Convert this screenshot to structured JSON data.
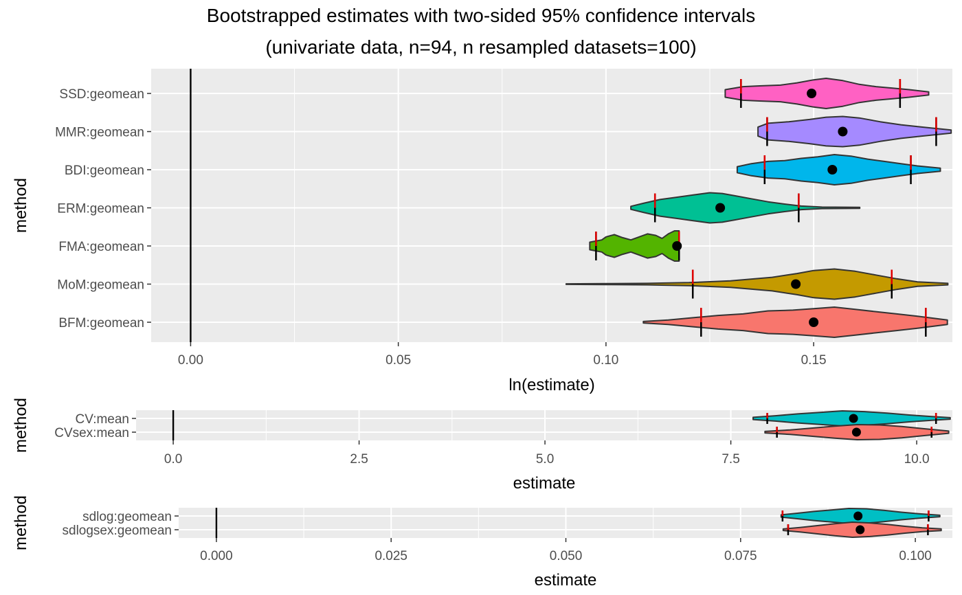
{
  "chart_data": {
    "type": "violin",
    "title": "Bootstrapped estimates with two-sided 95% confidence intervals",
    "subtitle": "(univariate data, n=94, n resampled datasets=100)",
    "panels": [
      {
        "xlabel": "ln(estimate)",
        "ylabel": "method",
        "xlim": [
          -0.0095,
          0.1834
        ],
        "xticks": [
          0.0,
          0.05,
          0.1,
          0.15
        ],
        "xtick_labels": [
          "0.00",
          "0.05",
          "0.10",
          "0.15"
        ],
        "minor_gridlines": [
          0.025,
          0.075,
          0.125,
          0.175
        ],
        "reference_line": 0,
        "grid": true,
        "categories": [
          "SSD:geomean",
          "MMR:geomean",
          "BDI:geomean",
          "ERM:geomean",
          "FMA:geomean",
          "MoM:geomean",
          "BFM:geomean"
        ],
        "series": [
          {
            "name": "SSD:geomean",
            "color": "#FF61C3",
            "point": 0.1495,
            "ci": [
              0.1325,
              0.1708
            ],
            "range": [
              0.1287,
              0.1777
            ],
            "profile": [
              [
                0.1287,
                0.25
              ],
              [
                0.133,
                0.45
              ],
              [
                0.137,
                0.5
              ],
              [
                0.142,
                0.55
              ],
              [
                0.146,
                0.7
              ],
              [
                0.15,
                0.9
              ],
              [
                0.153,
                1.0
              ],
              [
                0.157,
                0.85
              ],
              [
                0.161,
                0.6
              ],
              [
                0.165,
                0.45
              ],
              [
                0.169,
                0.35
              ],
              [
                0.173,
                0.25
              ],
              [
                0.1777,
                0.1
              ]
            ]
          },
          {
            "name": "MMR:geomean",
            "color": "#A58AFF",
            "point": 0.157,
            "ci": [
              0.1388,
              0.1795
            ],
            "range": [
              0.1366,
              0.1831
            ],
            "profile": [
              [
                0.1366,
                0.3
              ],
              [
                0.139,
                0.55
              ],
              [
                0.144,
                0.65
              ],
              [
                0.149,
                0.8
              ],
              [
                0.153,
                0.95
              ],
              [
                0.157,
                1.0
              ],
              [
                0.161,
                0.9
              ],
              [
                0.166,
                0.65
              ],
              [
                0.171,
                0.45
              ],
              [
                0.176,
                0.3
              ],
              [
                0.1831,
                0.1
              ]
            ]
          },
          {
            "name": "BDI:geomean",
            "color": "#00B6EB",
            "point": 0.1545,
            "ci": [
              0.1382,
              0.1734
            ],
            "range": [
              0.1316,
              0.1805
            ],
            "profile": [
              [
                0.1316,
                0.2
              ],
              [
                0.135,
                0.4
              ],
              [
                0.139,
                0.55
              ],
              [
                0.143,
                0.6
              ],
              [
                0.147,
                0.75
              ],
              [
                0.151,
                0.85
              ],
              [
                0.155,
                1.0
              ],
              [
                0.159,
                0.9
              ],
              [
                0.163,
                0.7
              ],
              [
                0.167,
                0.55
              ],
              [
                0.171,
                0.4
              ],
              [
                0.175,
                0.25
              ],
              [
                0.1805,
                0.1
              ]
            ]
          },
          {
            "name": "ERM:geomean",
            "color": "#00C094",
            "point": 0.1275,
            "ci": [
              0.1118,
              0.1464
            ],
            "range": [
              0.106,
              0.1611
            ],
            "profile": [
              [
                0.106,
                0.1
              ],
              [
                0.109,
                0.3
              ],
              [
                0.113,
                0.55
              ],
              [
                0.117,
                0.7
              ],
              [
                0.121,
                0.85
              ],
              [
                0.125,
                1.0
              ],
              [
                0.128,
                0.95
              ],
              [
                0.131,
                0.8
              ],
              [
                0.135,
                0.6
              ],
              [
                0.139,
                0.4
              ],
              [
                0.143,
                0.25
              ],
              [
                0.147,
                0.12
              ],
              [
                0.152,
                0.05
              ],
              [
                0.1611,
                0.03
              ]
            ]
          },
          {
            "name": "FMA:geomean",
            "color": "#53B400",
            "point": 0.1171,
            "ci": [
              0.0976,
              0.1176
            ],
            "range": [
              0.0961,
              0.1176
            ],
            "profile": [
              [
                0.0961,
                0.25
              ],
              [
                0.099,
                0.4
              ],
              [
                0.1,
                0.6
              ],
              [
                0.102,
                0.75
              ],
              [
                0.104,
                0.55
              ],
              [
                0.106,
                0.4
              ],
              [
                0.108,
                0.6
              ],
              [
                0.11,
                0.8
              ],
              [
                0.112,
                0.7
              ],
              [
                0.1135,
                0.5
              ],
              [
                0.115,
                0.8
              ],
              [
                0.1165,
                1.0
              ],
              [
                0.1176,
                1.0
              ]
            ]
          },
          {
            "name": "MoM:geomean",
            "color": "#C49A00",
            "point": 0.1457,
            "ci": [
              0.1209,
              0.1688
            ],
            "range": [
              0.0904,
              0.1823
            ],
            "profile": [
              [
                0.0904,
                0.02
              ],
              [
                0.1,
                0.03
              ],
              [
                0.11,
                0.05
              ],
              [
                0.12,
                0.1
              ],
              [
                0.13,
                0.22
              ],
              [
                0.14,
                0.45
              ],
              [
                0.146,
                0.7
              ],
              [
                0.15,
                0.9
              ],
              [
                0.155,
                1.0
              ],
              [
                0.16,
                0.85
              ],
              [
                0.165,
                0.6
              ],
              [
                0.17,
                0.35
              ],
              [
                0.175,
                0.15
              ],
              [
                0.1823,
                0.05
              ]
            ]
          },
          {
            "name": "BFM:geomean",
            "color": "#F8766D",
            "point": 0.15,
            "ci": [
              0.1229,
              0.177
            ],
            "range": [
              0.109,
              0.1822
            ],
            "profile": [
              [
                0.109,
                0.05
              ],
              [
                0.115,
                0.15
              ],
              [
                0.121,
                0.3
              ],
              [
                0.127,
                0.45
              ],
              [
                0.133,
                0.55
              ],
              [
                0.139,
                0.75
              ],
              [
                0.145,
                0.8
              ],
              [
                0.15,
                0.9
              ],
              [
                0.155,
                1.0
              ],
              [
                0.16,
                0.85
              ],
              [
                0.165,
                0.7
              ],
              [
                0.17,
                0.55
              ],
              [
                0.175,
                0.4
              ],
              [
                0.1822,
                0.15
              ]
            ]
          }
        ]
      },
      {
        "xlabel": "estimate",
        "ylabel": "method",
        "xlim": [
          -0.5,
          10.48
        ],
        "xticks": [
          0.0,
          2.5,
          5.0,
          7.5,
          10.0
        ],
        "xtick_labels": [
          "0.0",
          "2.5",
          "5.0",
          "7.5",
          "10.0"
        ],
        "minor_gridlines": [
          1.25,
          3.75,
          6.25,
          8.75
        ],
        "reference_line": 0,
        "grid": true,
        "categories": [
          "CV:mean",
          "CVsex:mean"
        ],
        "series": [
          {
            "name": "CV:mean",
            "color": "#00BFC4",
            "point": 9.15,
            "ci": [
              7.99,
              10.26
            ],
            "range": [
              7.8,
              10.45
            ],
            "profile": [
              [
                7.8,
                0.15
              ],
              [
                8.1,
                0.35
              ],
              [
                8.4,
                0.6
              ],
              [
                8.7,
                0.8
              ],
              [
                9.0,
                1.0
              ],
              [
                9.3,
                0.9
              ],
              [
                9.6,
                0.7
              ],
              [
                9.9,
                0.45
              ],
              [
                10.2,
                0.25
              ],
              [
                10.45,
                0.1
              ]
            ]
          },
          {
            "name": "CVsex:mean",
            "color": "#F8766D",
            "point": 9.19,
            "ci": [
              8.12,
              10.2
            ],
            "range": [
              7.96,
              10.43
            ],
            "profile": [
              [
                7.96,
                0.1
              ],
              [
                8.3,
                0.3
              ],
              [
                8.6,
                0.55
              ],
              [
                8.9,
                0.8
              ],
              [
                9.2,
                1.0
              ],
              [
                9.5,
                0.95
              ],
              [
                9.8,
                0.75
              ],
              [
                10.1,
                0.45
              ],
              [
                10.43,
                0.15
              ]
            ]
          }
        ]
      },
      {
        "xlabel": "estimate",
        "ylabel": "method",
        "xlim": [
          -0.0054,
          0.1053
        ],
        "xticks": [
          0.0,
          0.025,
          0.05,
          0.075,
          0.1
        ],
        "xtick_labels": [
          "0.000",
          "0.025",
          "0.050",
          "0.075",
          "0.100"
        ],
        "minor_gridlines": [
          0.0125,
          0.0375,
          0.0625,
          0.0875
        ],
        "reference_line": 0,
        "grid": true,
        "categories": [
          "sdlog:geomean",
          "sdlogsex:geomean"
        ],
        "series": [
          {
            "name": "sdlog:geomean",
            "color": "#00BFC4",
            "point": 0.0918,
            "ci": [
              0.081,
              0.1019
            ],
            "range": [
              0.0808,
              0.1035
            ],
            "profile": [
              [
                0.0808,
                0.15
              ],
              [
                0.083,
                0.35
              ],
              [
                0.0855,
                0.6
              ],
              [
                0.088,
                0.8
              ],
              [
                0.0905,
                1.0
              ],
              [
                0.093,
                0.95
              ],
              [
                0.0955,
                0.75
              ],
              [
                0.098,
                0.5
              ],
              [
                0.1005,
                0.3
              ],
              [
                0.1035,
                0.1
              ]
            ]
          },
          {
            "name": "sdlogsex:geomean",
            "color": "#F8766D",
            "point": 0.0921,
            "ci": [
              0.0818,
              0.1018
            ],
            "range": [
              0.0811,
              0.1037
            ],
            "profile": [
              [
                0.0811,
                0.1
              ],
              [
                0.0835,
                0.3
              ],
              [
                0.086,
                0.55
              ],
              [
                0.0885,
                0.8
              ],
              [
                0.091,
                1.0
              ],
              [
                0.0935,
                0.9
              ],
              [
                0.096,
                0.7
              ],
              [
                0.0985,
                0.45
              ],
              [
                0.101,
                0.25
              ],
              [
                0.1037,
                0.12
              ]
            ]
          }
        ]
      }
    ]
  }
}
